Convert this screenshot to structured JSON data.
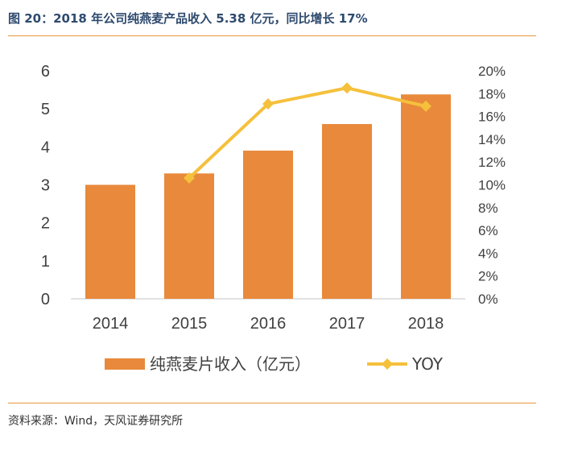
{
  "title": "图 20：2018 年公司纯燕麦产品收入 5.38 亿元，同比增长 17%",
  "source": "资料来源：Wind，天风证券研究所",
  "chart_data": {
    "type": "bar+line",
    "categories": [
      "2014",
      "2015",
      "2016",
      "2017",
      "2018"
    ],
    "series": [
      {
        "name": "纯燕麦片收入（亿元）",
        "type": "bar",
        "axis": "left",
        "color": "#e8893b",
        "values": [
          3.0,
          3.3,
          3.9,
          4.6,
          5.38
        ]
      },
      {
        "name": "YOY",
        "type": "line",
        "axis": "right",
        "color": "#f5c03c",
        "marker": "diamond",
        "x": [
          "2015",
          "2016",
          "2017",
          "2018"
        ],
        "values": [
          10.6,
          17.1,
          18.5,
          16.9
        ]
      }
    ],
    "y_left": {
      "ylim": [
        0,
        6
      ],
      "ticks": [
        "0",
        "1",
        "2",
        "3",
        "4",
        "5",
        "6"
      ]
    },
    "y_right": {
      "ylim": [
        0,
        20
      ],
      "ticks": [
        "0%",
        "2%",
        "4%",
        "6%",
        "8%",
        "10%",
        "12%",
        "14%",
        "16%",
        "18%",
        "20%"
      ]
    },
    "grid": false,
    "legend_position": "bottom"
  }
}
